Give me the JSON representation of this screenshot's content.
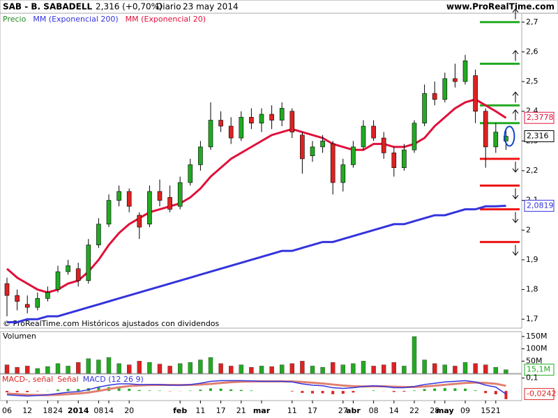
{
  "header": {
    "symbol": "SAB - B. SABADELL",
    "price": "2,316 (+0,70%)",
    "period": "Diario",
    "date": "23 may 2014",
    "site": "www.ProRealTime.com"
  },
  "footer": "© ProRealTime.com Históricos ajustados con dividendos",
  "chart_data": [
    {
      "type": "candlestick",
      "legend": [
        "Precio"
      ],
      "up_color": "#22aa22",
      "down_color": "#dd2222",
      "ohlc": [
        [
          1.82,
          1.84,
          1.71,
          1.78
        ],
        [
          1.78,
          1.8,
          1.73,
          1.76
        ],
        [
          1.75,
          1.78,
          1.72,
          1.74
        ],
        [
          1.74,
          1.79,
          1.73,
          1.77
        ],
        [
          1.77,
          1.81,
          1.76,
          1.79
        ],
        [
          1.8,
          1.88,
          1.79,
          1.86
        ],
        [
          1.86,
          1.9,
          1.85,
          1.88
        ],
        [
          1.87,
          1.89,
          1.81,
          1.83
        ],
        [
          1.83,
          1.97,
          1.82,
          1.95
        ],
        [
          1.95,
          2.04,
          1.94,
          2.02
        ],
        [
          2.02,
          2.12,
          2.01,
          2.1
        ],
        [
          2.1,
          2.15,
          2.08,
          2.13
        ],
        [
          2.13,
          2.14,
          2.06,
          2.08
        ],
        [
          2.05,
          2.06,
          1.97,
          2.01
        ],
        [
          2.02,
          2.15,
          2.01,
          2.13
        ],
        [
          2.13,
          2.17,
          2.08,
          2.1
        ],
        [
          2.11,
          2.15,
          2.06,
          2.07
        ],
        [
          2.08,
          2.18,
          2.07,
          2.16
        ],
        [
          2.16,
          2.24,
          2.15,
          2.22
        ],
        [
          2.22,
          2.3,
          2.2,
          2.28
        ],
        [
          2.28,
          2.43,
          2.27,
          2.37
        ],
        [
          2.37,
          2.4,
          2.33,
          2.35
        ],
        [
          2.35,
          2.38,
          2.29,
          2.31
        ],
        [
          2.31,
          2.4,
          2.3,
          2.38
        ],
        [
          2.38,
          2.41,
          2.34,
          2.36
        ],
        [
          2.36,
          2.41,
          2.33,
          2.39
        ],
        [
          2.39,
          2.42,
          2.34,
          2.37
        ],
        [
          2.37,
          2.43,
          2.35,
          2.41
        ],
        [
          2.4,
          2.41,
          2.31,
          2.33
        ],
        [
          2.32,
          2.33,
          2.19,
          2.24
        ],
        [
          2.25,
          2.3,
          2.23,
          2.28
        ],
        [
          2.28,
          2.32,
          2.26,
          2.3
        ],
        [
          2.29,
          2.3,
          2.12,
          2.16
        ],
        [
          2.16,
          2.24,
          2.13,
          2.22
        ],
        [
          2.22,
          2.3,
          2.21,
          2.28
        ],
        [
          2.28,
          2.37,
          2.27,
          2.35
        ],
        [
          2.35,
          2.37,
          2.3,
          2.31
        ],
        [
          2.31,
          2.33,
          2.24,
          2.26
        ],
        [
          2.26,
          2.28,
          2.18,
          2.21
        ],
        [
          2.21,
          2.29,
          2.2,
          2.27
        ],
        [
          2.27,
          2.37,
          2.26,
          2.36
        ],
        [
          2.36,
          2.49,
          2.35,
          2.46
        ],
        [
          2.46,
          2.5,
          2.42,
          2.44
        ],
        [
          2.44,
          2.53,
          2.43,
          2.51
        ],
        [
          2.51,
          2.56,
          2.48,
          2.5
        ],
        [
          2.5,
          2.59,
          2.49,
          2.57
        ],
        [
          2.52,
          2.54,
          2.36,
          2.4
        ],
        [
          2.4,
          2.41,
          2.21,
          2.28
        ],
        [
          2.28,
          2.36,
          2.26,
          2.33
        ],
        [
          2.3,
          2.34,
          2.27,
          2.316
        ]
      ],
      "series": [
        {
          "name": "MM (Exponencial 200)",
          "color": "#3333dd",
          "values": [
            1.69,
            1.69,
            1.7,
            1.7,
            1.71,
            1.71,
            1.72,
            1.73,
            1.74,
            1.75,
            1.76,
            1.77,
            1.78,
            1.79,
            1.8,
            1.81,
            1.82,
            1.83,
            1.84,
            1.85,
            1.86,
            1.87,
            1.88,
            1.89,
            1.9,
            1.91,
            1.92,
            1.93,
            1.93,
            1.94,
            1.95,
            1.96,
            1.96,
            1.97,
            1.98,
            1.99,
            2,
            2.01,
            2.02,
            2.02,
            2.03,
            2.04,
            2.05,
            2.05,
            2.06,
            2.07,
            2.07,
            2.08,
            2.08,
            2.0819
          ]
        },
        {
          "name": "MM (Exponencial 20)",
          "color": "#e0103a",
          "values": [
            1.87,
            1.84,
            1.82,
            1.8,
            1.79,
            1.8,
            1.82,
            1.83,
            1.86,
            1.9,
            1.95,
            1.99,
            2.02,
            2.04,
            2.06,
            2.07,
            2.08,
            2.09,
            2.11,
            2.14,
            2.18,
            2.21,
            2.24,
            2.26,
            2.28,
            2.3,
            2.32,
            2.33,
            2.34,
            2.33,
            2.32,
            2.31,
            2.29,
            2.28,
            2.27,
            2.27,
            2.29,
            2.29,
            2.28,
            2.28,
            2.29,
            2.31,
            2.35,
            2.38,
            2.41,
            2.43,
            2.44,
            2.42,
            2.4,
            2.3778
          ]
        }
      ],
      "markers": [
        {
          "value": 2.3778,
          "label": "2,3778",
          "color": "#e0103a"
        },
        {
          "value": 2.316,
          "label": "2,316",
          "color": "#000000"
        },
        {
          "value": 2.0819,
          "label": "2,0819",
          "color": "#3333dd"
        }
      ],
      "levels": [
        {
          "value": 2.7,
          "color": "#22aa22"
        },
        {
          "value": 2.56,
          "color": "#22aa22"
        },
        {
          "value": 2.42,
          "color": "#22aa22"
        },
        {
          "value": 2.36,
          "color": "#22aa22"
        },
        {
          "value": 2.24,
          "color": "#ee1111"
        },
        {
          "value": 2.15,
          "color": "#ee1111"
        },
        {
          "value": 2.07,
          "color": "#ee1111"
        },
        {
          "value": 1.96,
          "color": "#ee1111"
        }
      ],
      "ylim": [
        1.67,
        2.73
      ],
      "yticks": [
        {
          "value": 2.7,
          "label": "2,7"
        },
        {
          "value": 2.6,
          "label": "2,6"
        },
        {
          "value": 2.5,
          "label": "2,5"
        },
        {
          "value": 2.4,
          "label": "2,4"
        },
        {
          "value": 2.3,
          "label": "2,3"
        },
        {
          "value": 2.2,
          "label": "2,2"
        },
        {
          "value": 2.1,
          "label": "2,1"
        },
        {
          "value": 2,
          "label": "2"
        },
        {
          "value": 1.9,
          "label": "1,9"
        },
        {
          "value": 1.8,
          "label": "1,8"
        },
        {
          "value": 1.7,
          "label": "1,7"
        }
      ]
    },
    {
      "type": "bar",
      "title": "Volumen",
      "values": [
        35,
        25,
        30,
        20,
        28,
        40,
        30,
        45,
        60,
        55,
        65,
        40,
        35,
        50,
        45,
        38,
        30,
        40,
        45,
        55,
        65,
        40,
        30,
        35,
        25,
        30,
        28,
        35,
        40,
        50,
        30,
        25,
        45,
        35,
        40,
        50,
        30,
        35,
        45,
        30,
        150,
        55,
        40,
        35,
        30,
        45,
        40,
        35,
        25,
        15.1
      ],
      "last": {
        "value": 15.1,
        "label": "15,1M"
      },
      "ylim": [
        0,
        170
      ],
      "yticks": [
        {
          "value": 150,
          "label": "150M"
        },
        {
          "value": 100,
          "label": "100M"
        },
        {
          "value": 50,
          "label": "50M"
        }
      ]
    },
    {
      "type": "macd",
      "title": "MACD (12 26 9)",
      "legend": [
        "MACD-, señal",
        "Señal"
      ],
      "categories": [
        "06",
        null,
        "12",
        null,
        "18",
        "24",
        null,
        "2014",
        null,
        "08",
        "14",
        null,
        "20",
        null,
        null,
        null,
        null,
        "feb",
        null,
        "11",
        null,
        "17",
        null,
        "21",
        null,
        "mar",
        null,
        null,
        "11",
        null,
        "17",
        null,
        null,
        "27",
        "abr",
        null,
        "08",
        null,
        "14",
        null,
        "22",
        null,
        "28",
        "may",
        null,
        "09",
        null,
        "15",
        "21",
        null
      ],
      "series": [
        {
          "name": "MACD",
          "color": "#3333dd",
          "values": [
            -0.03,
            -0.035,
            -0.04,
            -0.035,
            -0.03,
            -0.02,
            -0.01,
            -0.005,
            0.01,
            0.03,
            0.045,
            0.055,
            0.055,
            0.05,
            0.05,
            0.05,
            0.045,
            0.045,
            0.05,
            0.06,
            0.075,
            0.08,
            0.08,
            0.08,
            0.078,
            0.075,
            0.075,
            0.075,
            0.07,
            0.055,
            0.045,
            0.04,
            0.025,
            0.02,
            0.025,
            0.035,
            0.04,
            0.035,
            0.025,
            0.025,
            0.035,
            0.05,
            0.06,
            0.07,
            0.075,
            0.08,
            0.07,
            0.045,
            0.03,
            -0.0242
          ]
        },
        {
          "name": "Señal",
          "color": "#e08070",
          "values": [
            -0.02,
            -0.025,
            -0.03,
            -0.032,
            -0.032,
            -0.03,
            -0.025,
            -0.02,
            -0.012,
            0,
            0.015,
            0.028,
            0.038,
            0.043,
            0.046,
            0.047,
            0.047,
            0.046,
            0.047,
            0.05,
            0.055,
            0.062,
            0.068,
            0.072,
            0.074,
            0.075,
            0.075,
            0.075,
            0.074,
            0.07,
            0.064,
            0.058,
            0.05,
            0.042,
            0.037,
            0.035,
            0.036,
            0.036,
            0.033,
            0.031,
            0.031,
            0.035,
            0.041,
            0.048,
            0.055,
            0.062,
            0.065,
            0.062,
            0.056,
            0.04
          ]
        }
      ],
      "histogram": [
        -0.01,
        -0.01,
        -0.01,
        -0.003,
        0.002,
        0.01,
        0.015,
        0.015,
        0.022,
        0.03,
        0.03,
        0.027,
        0.017,
        0.007,
        0.004,
        0.003,
        -0.002,
        -0.001,
        0.003,
        0.01,
        0.02,
        0.018,
        0.012,
        0.008,
        0.004,
        0,
        0,
        0,
        -0.004,
        -0.015,
        -0.019,
        -0.018,
        -0.025,
        -0.022,
        -0.012,
        0,
        0.004,
        -0.001,
        -0.008,
        -0.006,
        0.004,
        0.015,
        0.019,
        0.022,
        0.02,
        0.018,
        0.005,
        -0.017,
        -0.026,
        -0.064
      ],
      "last": {
        "value": -0.0242,
        "label": "-0,0242"
      },
      "ylim": [
        -0.075,
        0.131
      ],
      "yticks": [
        {
          "value": 0.1,
          "label": "0,1"
        }
      ]
    }
  ]
}
